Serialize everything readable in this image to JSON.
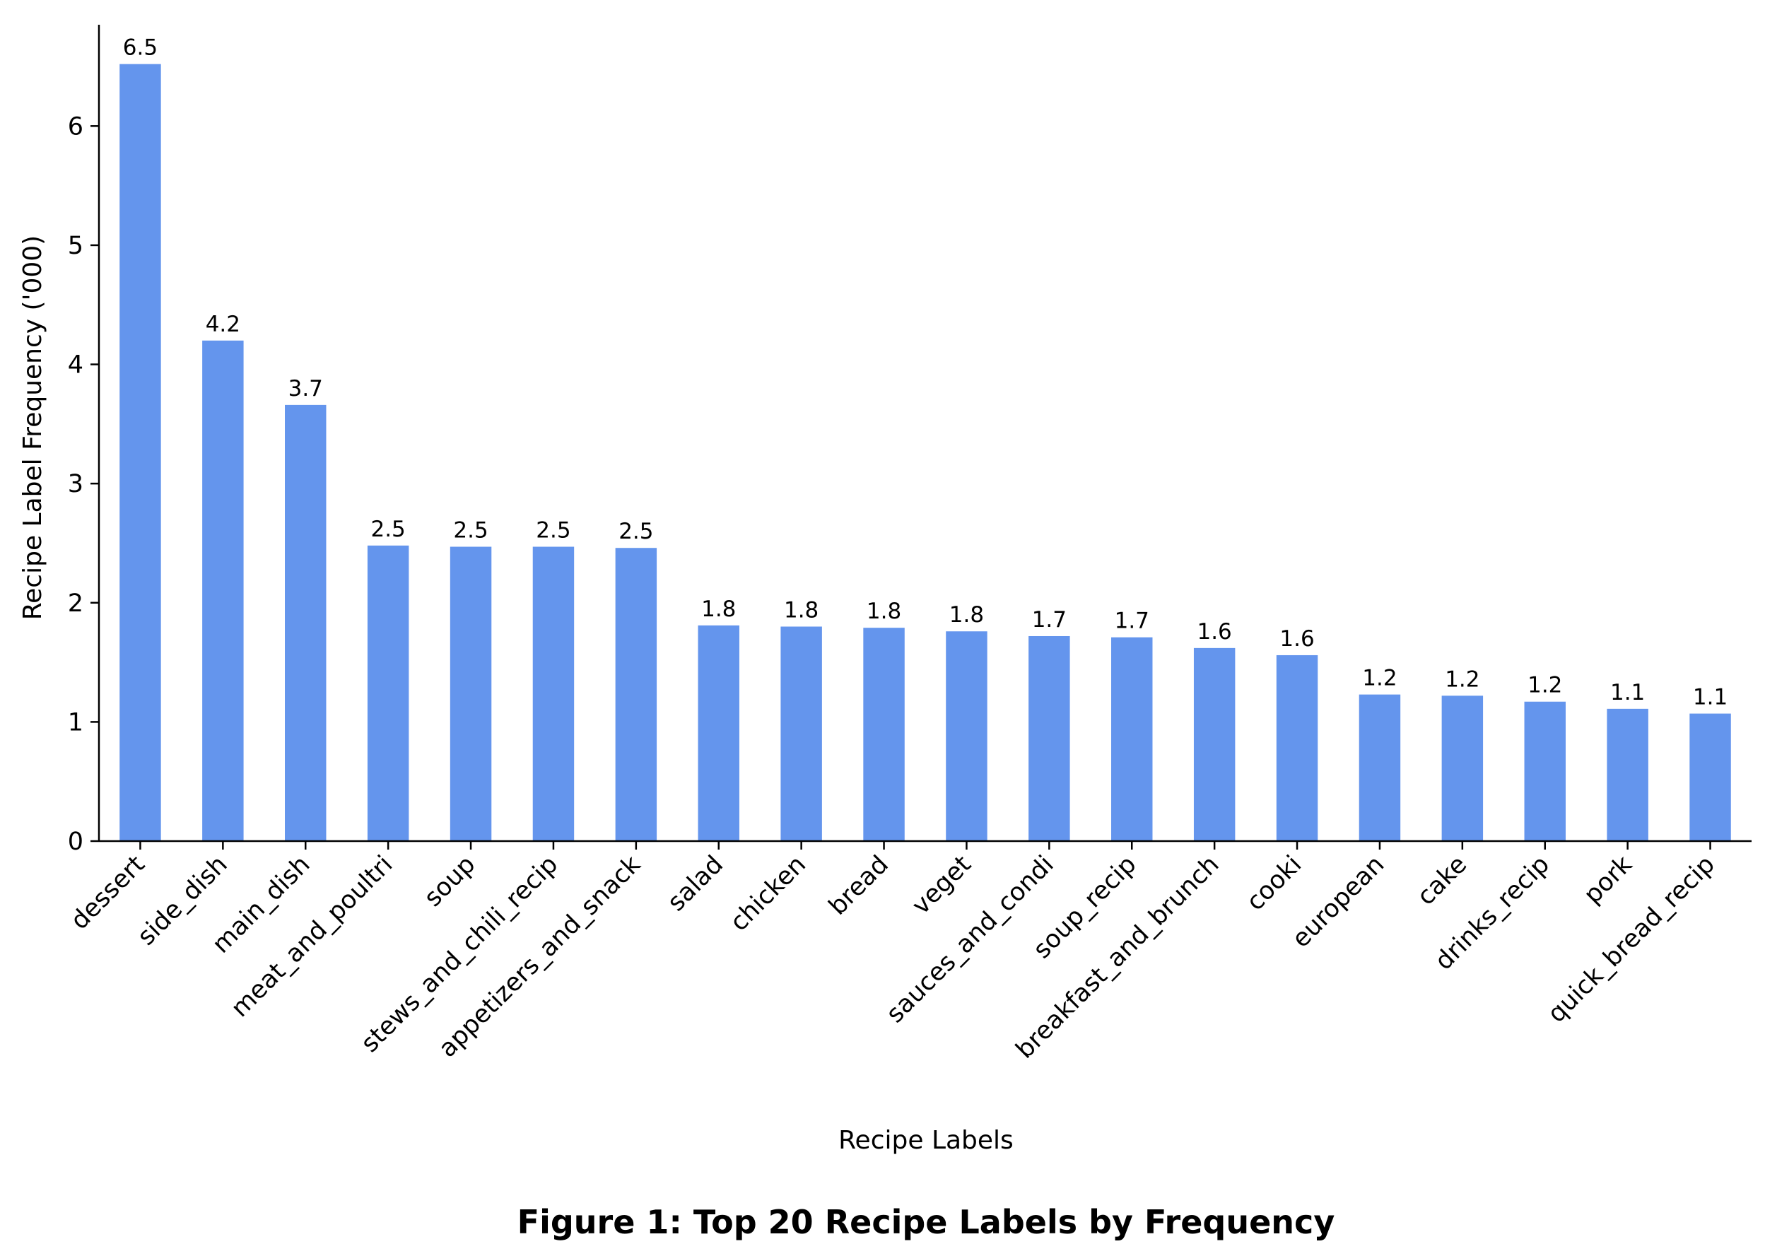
{
  "chart_data": {
    "type": "bar",
    "title": "Figure 1: Top 20 Recipe Labels by Frequency",
    "xlabel": "Recipe Labels",
    "ylabel": "Recipe Label Frequency ('000)",
    "categories": [
      "dessert",
      "side_dish",
      "main_dish",
      "meat_and_poultri",
      "soup",
      "stews_and_chili_recip",
      "appetizers_and_snack",
      "salad",
      "chicken",
      "bread",
      "veget",
      "sauces_and_condi",
      "soup_recip",
      "breakfast_and_brunch",
      "cooki",
      "european",
      "cake",
      "drinks_recip",
      "pork",
      "quick_bread_recip"
    ],
    "values": [
      6.52,
      4.2,
      3.66,
      2.48,
      2.47,
      2.47,
      2.46,
      1.81,
      1.8,
      1.79,
      1.76,
      1.72,
      1.71,
      1.62,
      1.56,
      1.23,
      1.22,
      1.17,
      1.11,
      1.07
    ],
    "data_labels": [
      "6.5",
      "4.2",
      "3.7",
      "2.5",
      "2.5",
      "2.5",
      "2.5",
      "1.8",
      "1.8",
      "1.8",
      "1.8",
      "1.7",
      "1.7",
      "1.6",
      "1.6",
      "1.2",
      "1.2",
      "1.2",
      "1.1",
      "1.1"
    ],
    "y_ticks": [
      0,
      1,
      2,
      3,
      4,
      5,
      6
    ],
    "ylim": [
      0,
      6.85
    ],
    "bar_color": "#6495ed",
    "grid": false,
    "legend": "none"
  }
}
